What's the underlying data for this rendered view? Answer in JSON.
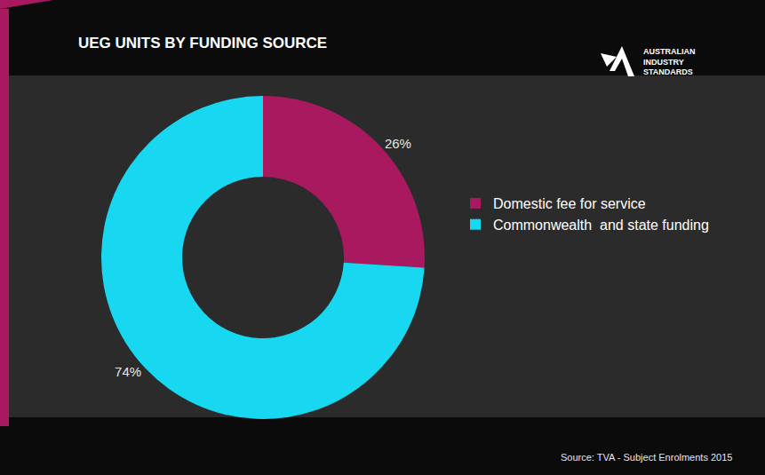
{
  "chart_data": {
    "type": "pie",
    "title": "UEG UNITS BY FUNDING SOURCE",
    "categories": [
      "Domestic fee for service",
      "Commonwealth  and state funding"
    ],
    "values": [
      26,
      74
    ],
    "value_labels": [
      "26%",
      "74%"
    ],
    "colors": [
      "#a8195f",
      "#17d8f0"
    ],
    "data_labels": true,
    "legend": "right",
    "source": "Source: TVA - Subject Enrolments 2015",
    "logo": [
      "AUSTRALIAN",
      "INDUSTRY",
      "STANDARDS"
    ]
  }
}
